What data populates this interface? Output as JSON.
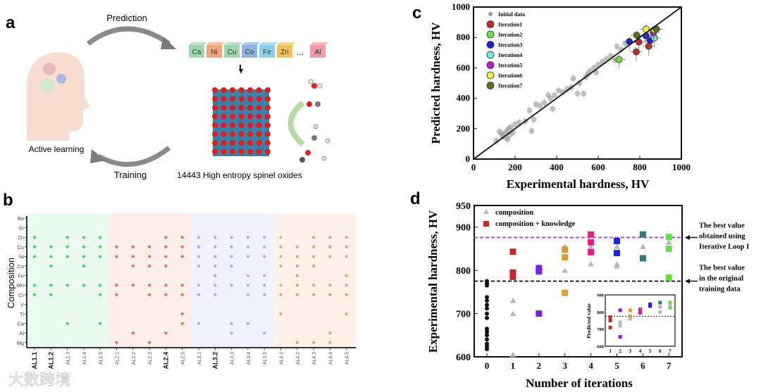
{
  "panel_a": {
    "label": "a",
    "prediction_label": "Prediction",
    "training_label": "Training",
    "active_learning_label": "Active learning",
    "elements": [
      {
        "symbol": "Ca",
        "color": "#9fd6b0"
      },
      {
        "symbol": "Ni",
        "color": "#f0a77e"
      },
      {
        "symbol": "Cu",
        "color": "#9fd6b0"
      },
      {
        "symbol": "Co",
        "color": "#8fb3de"
      },
      {
        "symbol": "Fe",
        "color": "#8ad0ea"
      },
      {
        "symbol": "Zn",
        "color": "#f3c15b"
      },
      {
        "symbol": "Al",
        "color": "#f29aa8"
      }
    ],
    "ellipsis": "...",
    "caption": "14443 High entropy spinel oxides"
  },
  "chart_data": [
    {
      "id": "b",
      "panel_label": "b",
      "type": "scatter",
      "ylabel": "Composition",
      "rows": [
        "Ba",
        "Sr",
        "Zn",
        "Cu",
        "Ni",
        "Co",
        "Fe",
        "Mn",
        "Cr",
        "V",
        "Ti",
        "Ca",
        "Al",
        "Mg"
      ],
      "groups": [
        {
          "color": "#3ecf6a",
          "bg": "#eafaee"
        },
        {
          "color": "#e26a5a",
          "bg": "#fdeeea"
        },
        {
          "color": "#a9a6ee",
          "bg": "#f1f0fd"
        },
        {
          "color": "#e0a070",
          "bg": "#fdf1ea"
        }
      ],
      "columns": [
        {
          "label": "AL1.1",
          "bold": true,
          "group": 0,
          "elements": [
            "Zn",
            "Cu",
            "Ni",
            "Mn",
            "Cr"
          ]
        },
        {
          "label": "AL1.2",
          "bold": true,
          "group": 0,
          "elements": [
            "Cu",
            "Ni",
            "Co",
            "Mn",
            "Cr"
          ]
        },
        {
          "label": "AL1.3",
          "bold": false,
          "group": 0,
          "elements": [
            "Zn",
            "Cu",
            "Ni",
            "Mn",
            "Ca"
          ]
        },
        {
          "label": "AL1.4",
          "bold": false,
          "group": 0,
          "elements": [
            "Zn",
            "Cu",
            "Ni",
            "Co",
            "Mn"
          ]
        },
        {
          "label": "AL1.5",
          "bold": false,
          "group": 0,
          "elements": [
            "Zn",
            "Cu",
            "Ni",
            "Mn",
            "Cr",
            "Ca"
          ]
        },
        {
          "label": "AL2.1",
          "bold": false,
          "group": 1,
          "elements": [
            "Cu",
            "Ni",
            "Mn",
            "Cr",
            "Mg"
          ]
        },
        {
          "label": "AL2.2",
          "bold": false,
          "group": 1,
          "elements": [
            "Cu",
            "Ni",
            "Co",
            "Mn",
            "Al"
          ]
        },
        {
          "label": "AL2.3",
          "bold": false,
          "group": 1,
          "elements": [
            "Cu",
            "Ni",
            "Co",
            "Mn",
            "Cr",
            "Mg"
          ]
        },
        {
          "label": "AL2.4",
          "bold": true,
          "group": 1,
          "elements": [
            "Zn",
            "Cu",
            "Ni",
            "Co",
            "Mn",
            "Cr",
            "Al"
          ]
        },
        {
          "label": "AL2.5",
          "bold": false,
          "group": 1,
          "elements": [
            "Zn",
            "Cu",
            "Ni",
            "Mn",
            "Cr",
            "Ti",
            "Ca"
          ]
        },
        {
          "label": "AL3.1",
          "bold": false,
          "group": 2,
          "elements": [
            "Zn",
            "Cu",
            "Ni",
            "Co",
            "Mn",
            "Cr",
            "Ca"
          ]
        },
        {
          "label": "AL3.2",
          "bold": true,
          "group": 2,
          "elements": [
            "Zn",
            "Cu",
            "Ni",
            "Co",
            "Fe",
            "Mn",
            "Cr"
          ]
        },
        {
          "label": "AL3.3",
          "bold": false,
          "group": 2,
          "elements": [
            "Zn",
            "Cu",
            "Ni",
            "Co",
            "Mn",
            "Ca",
            "Al"
          ]
        },
        {
          "label": "AL3.4",
          "bold": false,
          "group": 2,
          "elements": [
            "Zn",
            "Cu",
            "Ni",
            "Fe",
            "Mn",
            "Cr",
            "Ca"
          ]
        },
        {
          "label": "AL3.5",
          "bold": false,
          "group": 2,
          "elements": [
            "Zn",
            "Cu",
            "Ni",
            "Fe",
            "Mn",
            "Cr",
            "Al"
          ]
        },
        {
          "label": "AL4.1",
          "bold": false,
          "group": 3,
          "elements": [
            "Zn",
            "Cu",
            "Ni",
            "Co",
            "Mn",
            "Cr",
            "Ti"
          ]
        },
        {
          "label": "AL4.2",
          "bold": false,
          "group": 3,
          "elements": [
            "Cu",
            "Ni",
            "Co",
            "Fe",
            "Mn",
            "Cr",
            "Mg"
          ]
        },
        {
          "label": "AL4.3",
          "bold": false,
          "group": 3,
          "elements": [
            "Zn",
            "Cu",
            "Ni",
            "Co",
            "Mn",
            "Cr",
            "Mg"
          ]
        },
        {
          "label": "AL4.4",
          "bold": false,
          "group": 3,
          "elements": [
            "Zn",
            "Cu",
            "Ni",
            "Mn",
            "Cr",
            "Al",
            "Mg"
          ]
        },
        {
          "label": "AL4.5",
          "bold": false,
          "group": 3,
          "elements": [
            "Zn",
            "Cu",
            "Ni",
            "Fe",
            "Mn",
            "Cr",
            "Ti"
          ]
        }
      ]
    },
    {
      "id": "c",
      "panel_label": "c",
      "type": "scatter",
      "xlabel": "Experimental hardness, HV",
      "ylabel": "Predicted hardness, HV",
      "xlim": [
        0,
        1000
      ],
      "ylim": [
        0,
        1000
      ],
      "xticks": [
        0,
        200,
        400,
        600,
        800,
        1000
      ],
      "yticks": [
        0,
        200,
        400,
        600,
        800,
        1000
      ],
      "legend_position": "top-left",
      "series": [
        {
          "name": "Initial data",
          "color": "#9a9a9a",
          "points": [
            [
              110,
              120
            ],
            [
              125,
              180
            ],
            [
              135,
              170
            ],
            [
              140,
              150
            ],
            [
              150,
              165
            ],
            [
              155,
              140
            ],
            [
              160,
              185
            ],
            [
              165,
              130
            ],
            [
              170,
              200
            ],
            [
              175,
              160
            ],
            [
              180,
              210
            ],
            [
              190,
              175
            ],
            [
              200,
              230
            ],
            [
              220,
              240
            ],
            [
              250,
              250
            ],
            [
              270,
              320
            ],
            [
              280,
              185
            ],
            [
              290,
              260
            ],
            [
              300,
              360
            ],
            [
              320,
              350
            ],
            [
              340,
              370
            ],
            [
              360,
              420
            ],
            [
              370,
              400
            ],
            [
              380,
              330
            ],
            [
              390,
              420
            ],
            [
              410,
              450
            ],
            [
              430,
              440
            ],
            [
              450,
              460
            ],
            [
              470,
              470
            ],
            [
              480,
              530
            ],
            [
              500,
              430
            ],
            [
              510,
              500
            ],
            [
              530,
              430
            ],
            [
              540,
              540
            ],
            [
              550,
              560
            ],
            [
              560,
              580
            ],
            [
              580,
              600
            ],
            [
              590,
              570
            ],
            [
              600,
              620
            ],
            [
              620,
              640
            ],
            [
              640,
              660
            ],
            [
              660,
              680
            ],
            [
              680,
              650
            ],
            [
              690,
              740
            ],
            [
              710,
              720
            ],
            [
              730,
              760
            ],
            [
              750,
              770
            ]
          ]
        },
        {
          "name": "Iteration1",
          "color": "#c0282a",
          "points": [
            [
              783,
              705
            ],
            [
              795,
              770
            ],
            [
              843,
              742
            ]
          ]
        },
        {
          "name": "Iteration2",
          "color": "#6be04a",
          "points": [
            [
              700,
              655
            ]
          ]
        },
        {
          "name": "Iteration3",
          "color": "#1a22c8",
          "points": [
            [
              750,
              773
            ],
            [
              850,
              780
            ],
            [
              830,
              810
            ]
          ]
        },
        {
          "name": "Iteration4",
          "color": "#7fe3e3",
          "points": [
            [
              870,
              797
            ]
          ]
        },
        {
          "name": "Iteration5",
          "color": "#b020c0",
          "points": [
            [
              865,
              830
            ]
          ]
        },
        {
          "name": "Iteration6",
          "color": "#f0f040",
          "points": [
            [
              830,
              855
            ],
            [
              870,
              850
            ]
          ]
        },
        {
          "name": "Iteration7",
          "color": "#5a6a20",
          "points": [
            [
              785,
              815
            ],
            [
              880,
              855
            ]
          ]
        }
      ]
    },
    {
      "id": "d",
      "panel_label": "d",
      "type": "scatter",
      "xlabel": "Number of iterations",
      "ylabel": "Experimental hardness, HV",
      "xlim": [
        -0.5,
        7.5
      ],
      "ylim": [
        600,
        950
      ],
      "xticks": [
        0,
        1,
        2,
        3,
        4,
        5,
        6,
        7
      ],
      "yticks": [
        600,
        700,
        800,
        900,
        950
      ],
      "legend_position": "top-left",
      "legend": [
        "composition",
        "composition + knowledge"
      ],
      "initial": {
        "x": 0,
        "values": [
          618,
          624,
          630,
          640,
          650,
          658,
          665,
          690,
          700,
          712,
          720,
          730,
          738,
          765,
          770,
          775
        ],
        "color": "#111111"
      },
      "composition": {
        "color": "#b8b8b8",
        "points": [
          [
            1,
            730
          ],
          [
            1,
            700
          ],
          [
            1,
            605
          ],
          [
            2,
            810
          ],
          [
            2,
            795
          ],
          [
            3,
            855
          ],
          [
            3,
            800
          ],
          [
            4,
            855
          ],
          [
            4,
            815
          ],
          [
            5,
            855
          ],
          [
            5,
            815
          ],
          [
            5,
            810
          ],
          [
            6,
            855
          ],
          [
            7,
            865
          ]
        ]
      },
      "knowledge": [
        {
          "x": 1,
          "color": "#c0282a",
          "values": [
            843,
            795,
            785
          ]
        },
        {
          "x": 2,
          "color": "#7a1ee0",
          "values": [
            805,
            798,
            700
          ]
        },
        {
          "x": 3,
          "color": "#e09a30",
          "values": [
            848,
            830,
            748
          ]
        },
        {
          "x": 4,
          "color": "#e0208a",
          "values": [
            883,
            865,
            842
          ]
        },
        {
          "x": 5,
          "color": "#1a22e0",
          "values": [
            868,
            840
          ]
        },
        {
          "x": 6,
          "color": "#2f7a78",
          "values": [
            883,
            828
          ]
        },
        {
          "x": 7,
          "color": "#5ee040",
          "values": [
            877,
            850,
            783
          ]
        }
      ],
      "reference_lines": [
        {
          "value": 876,
          "color": "#b040e0",
          "annotation": [
            "The best value",
            "obtained using",
            "Iterative Loop I"
          ]
        },
        {
          "value": 775,
          "color": "#000000",
          "annotation": [
            "The best value",
            "in the original",
            "training data"
          ]
        }
      ],
      "inset": {
        "ylabel": "Predicted value",
        "xticks": [
          1,
          2,
          3,
          4,
          5,
          6,
          7
        ],
        "yticks": [
          600,
          700,
          800,
          900
        ],
        "ylim": [
          600,
          900
        ],
        "reference": 775,
        "points": [
          [
            1,
            770,
            "#c0282a"
          ],
          [
            1,
            750,
            "#c0282a"
          ],
          [
            1,
            710,
            "#c0282a"
          ],
          [
            2,
            740,
            "#b8b8b8"
          ],
          [
            2,
            720,
            "#b8b8b8"
          ],
          [
            2,
            810,
            "#7a1ee0"
          ],
          [
            2,
            655,
            "#7a1ee0"
          ],
          [
            3,
            810,
            "#e09a30"
          ],
          [
            3,
            775,
            "#e09a30"
          ],
          [
            3,
            760,
            "#b8b8b8"
          ],
          [
            4,
            815,
            "#e0208a"
          ],
          [
            4,
            795,
            "#e0208a"
          ],
          [
            5,
            845,
            "#1a22e0"
          ],
          [
            5,
            835,
            "#1a22e0"
          ],
          [
            6,
            855,
            "#2f7a78"
          ],
          [
            6,
            830,
            "#b8b8b8"
          ],
          [
            6,
            800,
            "#b8b8b8"
          ],
          [
            7,
            855,
            "#5ee040"
          ],
          [
            7,
            825,
            "#5ee040"
          ],
          [
            7,
            840,
            "#b8b8b8"
          ]
        ]
      }
    }
  ],
  "watermark": "大数跨境"
}
